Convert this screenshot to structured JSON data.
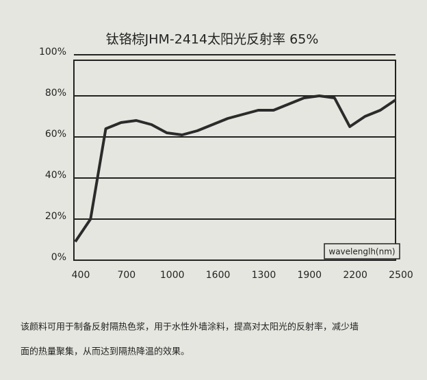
{
  "chart_data": {
    "type": "line",
    "title": "钛铬棕JHM-2414太阳光反射率 65%",
    "annotation": "wavelenglh(nm)",
    "categories": [
      "400",
      null,
      null,
      "700",
      null,
      null,
      "1000",
      null,
      null,
      "1600",
      null,
      null,
      "1300",
      null,
      null,
      "1900",
      null,
      null,
      "2200",
      null,
      null,
      "2500"
    ],
    "series": [
      {
        "name": "reflectance",
        "color": "#2b2b2b",
        "values": [
          9,
          20,
          64,
          67,
          68,
          66,
          62,
          61,
          63,
          66,
          69,
          71,
          73,
          73,
          76,
          79,
          80,
          79,
          65,
          70,
          73,
          78
        ]
      }
    ],
    "ylim": [
      0,
      100
    ],
    "yticks": [
      {
        "value": 0,
        "label": "0%"
      },
      {
        "value": 20,
        "label": "20%"
      },
      {
        "value": 40,
        "label": "40%"
      },
      {
        "value": 60,
        "label": "60%"
      },
      {
        "value": 80,
        "label": "80%"
      },
      {
        "value": 100,
        "label": "100%"
      }
    ],
    "grid": true
  },
  "text": [
    "该颜料可用于制备反射隔热色浆，用于水性外墙涂料，提高对太阳光的反射率，减少墙",
    "面的热量聚集，从而达到隔热降温的效果。"
  ]
}
